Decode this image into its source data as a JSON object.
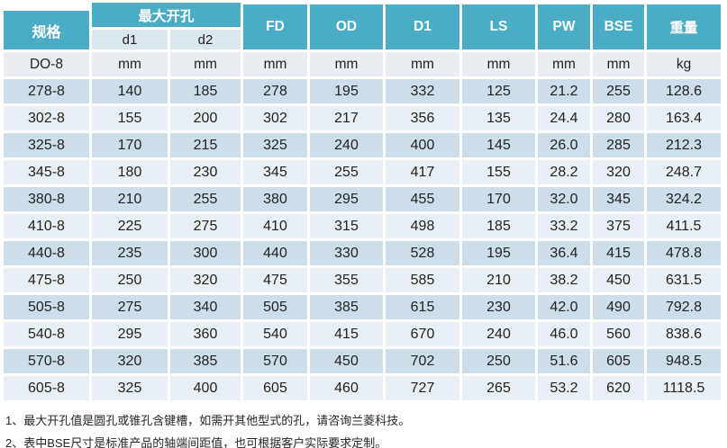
{
  "table": {
    "spec_header": "规格",
    "group_header": "最大开孔",
    "sub_headers": [
      "d1",
      "d2"
    ],
    "headers": [
      "FD",
      "OD",
      "D1",
      "LS",
      "PW",
      "BSE",
      "重量"
    ],
    "unit_row": {
      "spec": "DO-8",
      "values": [
        "mm",
        "mm",
        "mm",
        "mm",
        "mm",
        "mm",
        "mm",
        "mm",
        "kg"
      ]
    },
    "rows": [
      {
        "spec": "278-8",
        "values": [
          "140",
          "185",
          "278",
          "195",
          "332",
          "125",
          "21.2",
          "255",
          "128.6"
        ]
      },
      {
        "spec": "302-8",
        "values": [
          "155",
          "200",
          "302",
          "217",
          "356",
          "135",
          "24.4",
          "280",
          "163.4"
        ]
      },
      {
        "spec": "325-8",
        "values": [
          "170",
          "215",
          "325",
          "240",
          "400",
          "145",
          "26.0",
          "285",
          "212.3"
        ]
      },
      {
        "spec": "345-8",
        "values": [
          "180",
          "230",
          "345",
          "255",
          "417",
          "155",
          "28.2",
          "320",
          "248.7"
        ]
      },
      {
        "spec": "380-8",
        "values": [
          "210",
          "255",
          "380",
          "295",
          "455",
          "170",
          "32.0",
          "345",
          "324.2"
        ]
      },
      {
        "spec": "410-8",
        "values": [
          "225",
          "275",
          "410",
          "315",
          "498",
          "185",
          "33.2",
          "375",
          "411.5"
        ]
      },
      {
        "spec": "440-8",
        "values": [
          "235",
          "300",
          "440",
          "330",
          "528",
          "195",
          "36.4",
          "415",
          "478.8"
        ]
      },
      {
        "spec": "475-8",
        "values": [
          "250",
          "320",
          "475",
          "355",
          "585",
          "210",
          "38.2",
          "450",
          "631.5"
        ]
      },
      {
        "spec": "505-8",
        "values": [
          "275",
          "340",
          "505",
          "385",
          "615",
          "230",
          "42.0",
          "490",
          "792.8"
        ]
      },
      {
        "spec": "540-8",
        "values": [
          "295",
          "360",
          "540",
          "415",
          "670",
          "240",
          "46.0",
          "560",
          "838.6"
        ]
      },
      {
        "spec": "570-8",
        "values": [
          "320",
          "385",
          "570",
          "450",
          "702",
          "250",
          "51.6",
          "605",
          "948.5"
        ]
      },
      {
        "spec": "605-8",
        "values": [
          "325",
          "400",
          "605",
          "460",
          "727",
          "265",
          "53.2",
          "620",
          "1118.5"
        ]
      }
    ]
  },
  "notes": [
    "1、最大开孔值是圆孔或锥孔含键槽，如需开其他型式的孔，请咨询兰菱科技。",
    "2、表中BSE尺寸是标准产品的轴端间距值，也可根据客户实际要求定制。"
  ],
  "colors": {
    "header_teal": "#4BACC6",
    "header_text": "#FFFFFF",
    "subheader_bg": "#DCE8EF",
    "band_dark": "#CBDEE9",
    "band_light": "#E9F0F5",
    "units_row_bg": "#EAEEF2",
    "cell_text": "#222222"
  }
}
